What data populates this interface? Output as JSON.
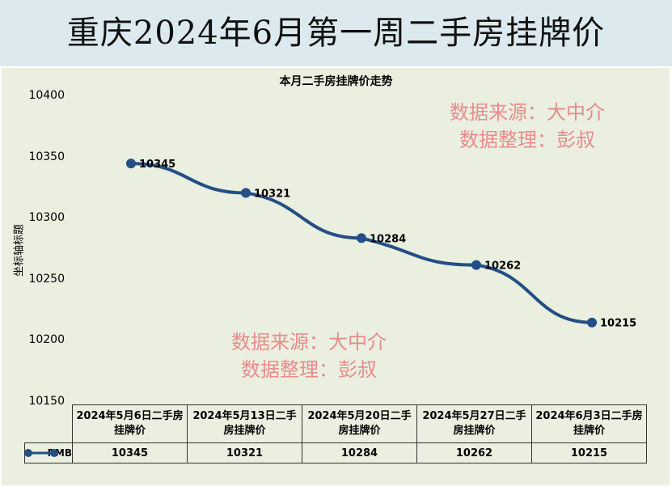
{
  "title": "重庆2024年6月第一周二手房挂牌价",
  "watermark": {
    "line1": "数据来源：大中介",
    "line2": "数据整理：彭叔"
  },
  "colors": {
    "line": "#234e86",
    "watermark": "#e88c8c"
  },
  "chart_data": {
    "type": "line",
    "title": "本月二手房挂牌价走势",
    "ylabel": "坐标轴标题",
    "ylim": [
      10150,
      10400
    ],
    "yticks": [
      "10400",
      "10350",
      "10300",
      "10250",
      "10200",
      "10150"
    ],
    "categories": [
      "2024年5月6日二手房挂牌价",
      "2024年5月13日二手房挂牌价",
      "2024年5月20日二手房挂牌价",
      "2024年5月27日二手房挂牌价",
      "2024年6月3日二手房挂牌价"
    ],
    "series": [
      {
        "name": "RMB",
        "values": [
          10345,
          10321,
          10284,
          10262,
          10215
        ],
        "labels": [
          "10345",
          "10321",
          "10284",
          "10262",
          "10215"
        ]
      }
    ]
  }
}
